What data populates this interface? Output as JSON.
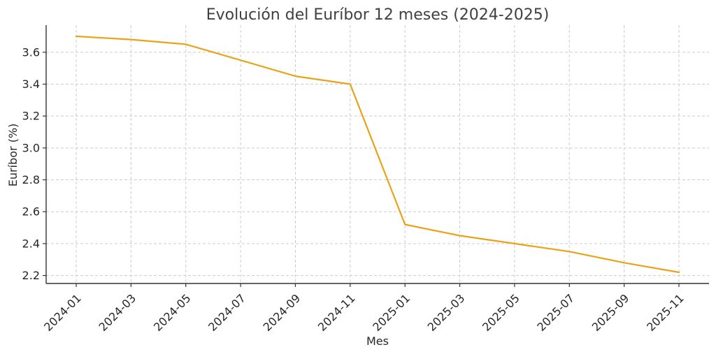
{
  "chart_data": {
    "type": "line",
    "title": "Evolución del Euríbor 12 meses (2024-2025)",
    "xlabel": "Mes",
    "ylabel": "Euríbor (%)",
    "x": [
      "2024-01",
      "2024-03",
      "2024-05",
      "2024-07",
      "2024-09",
      "2024-11",
      "2025-01",
      "2025-03",
      "2025-05",
      "2025-07",
      "2025-09",
      "2025-11"
    ],
    "x_tick_labels": [
      "2024-01",
      "2024-03",
      "2024-05",
      "2024-07",
      "2024-09",
      "2024-11",
      "2025-01",
      "2025-03",
      "2025-05",
      "2025-07",
      "2025-09",
      "2025-11"
    ],
    "y_ticks": [
      2.2,
      2.4,
      2.6,
      2.8,
      3.0,
      3.2,
      3.4,
      3.6
    ],
    "ylim": [
      2.15,
      3.77
    ],
    "grid": true,
    "series": [
      {
        "color": "#E8A317",
        "values": [
          3.7,
          3.68,
          3.65,
          3.55,
          3.45,
          3.4,
          2.52,
          2.45,
          2.4,
          2.35,
          2.28,
          2.22
        ]
      }
    ]
  }
}
